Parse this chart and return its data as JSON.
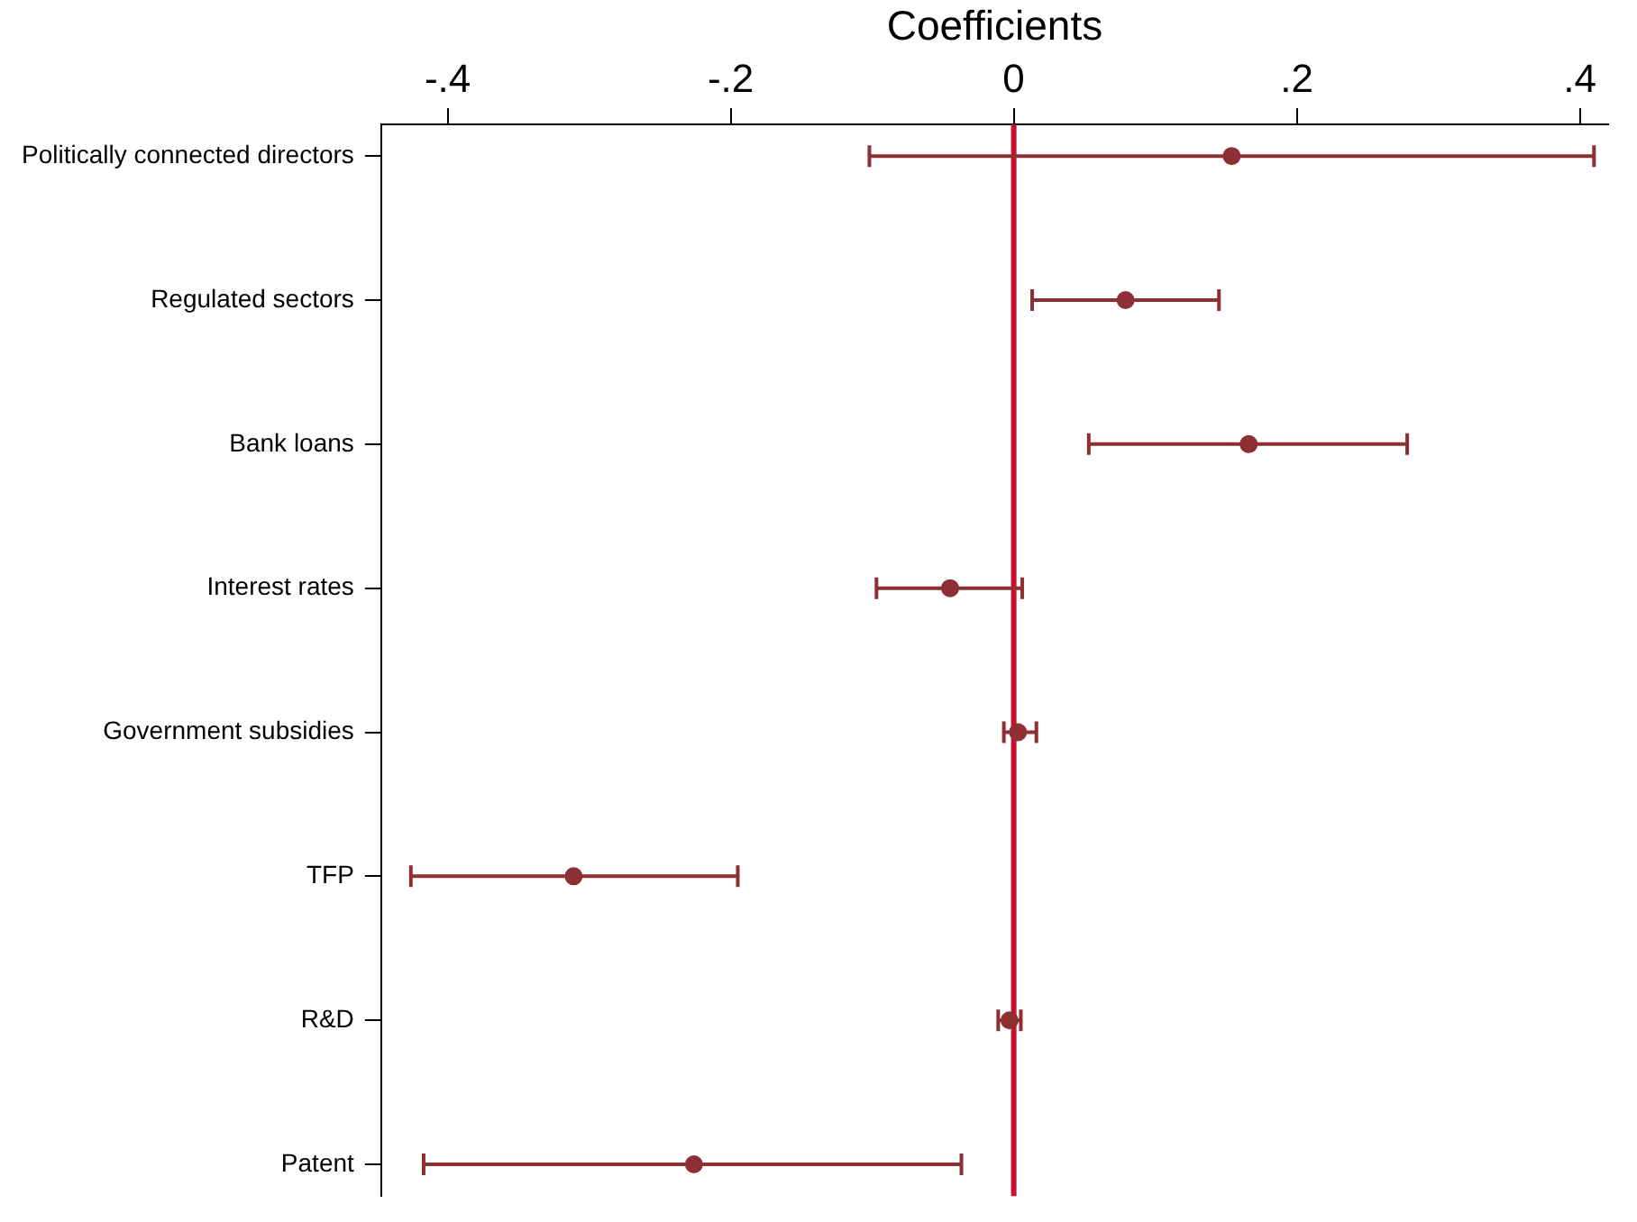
{
  "chart_data": {
    "type": "scatter",
    "orientation": "horizontal",
    "xlabel": "Coefficients",
    "categories": [
      "Politically connected directors",
      "Regulated sectors",
      "Bank loans",
      "Interest rates",
      "Government subsidies",
      "TFP",
      "R&D",
      "Patent"
    ],
    "values": [
      0.154,
      0.079,
      0.166,
      -0.045,
      0.003,
      -0.311,
      -0.003,
      -0.226
    ],
    "errors": [
      [
        -0.102,
        0.41
      ],
      [
        0.013,
        0.145
      ],
      [
        0.053,
        0.278
      ],
      [
        -0.097,
        0.006
      ],
      [
        -0.007,
        0.016
      ],
      [
        -0.426,
        -0.195
      ],
      [
        -0.011,
        0.005
      ],
      [
        -0.417,
        -0.037
      ]
    ],
    "color": "#8e2f33",
    "marker": "circle",
    "grid": false,
    "legend": false,
    "xlim": [
      -0.447,
      0.42
    ],
    "xticks": [
      {
        "value": -0.4,
        "label": "-.4"
      },
      {
        "value": -0.2,
        "label": "-.2"
      },
      0,
      {
        "value": 0.2,
        "label": ".2"
      },
      {
        "value": 0.4,
        "label": ".4"
      }
    ],
    "ref_lines": [
      {
        "axis": "x",
        "value": 0,
        "color": "#c8102e"
      }
    ]
  }
}
